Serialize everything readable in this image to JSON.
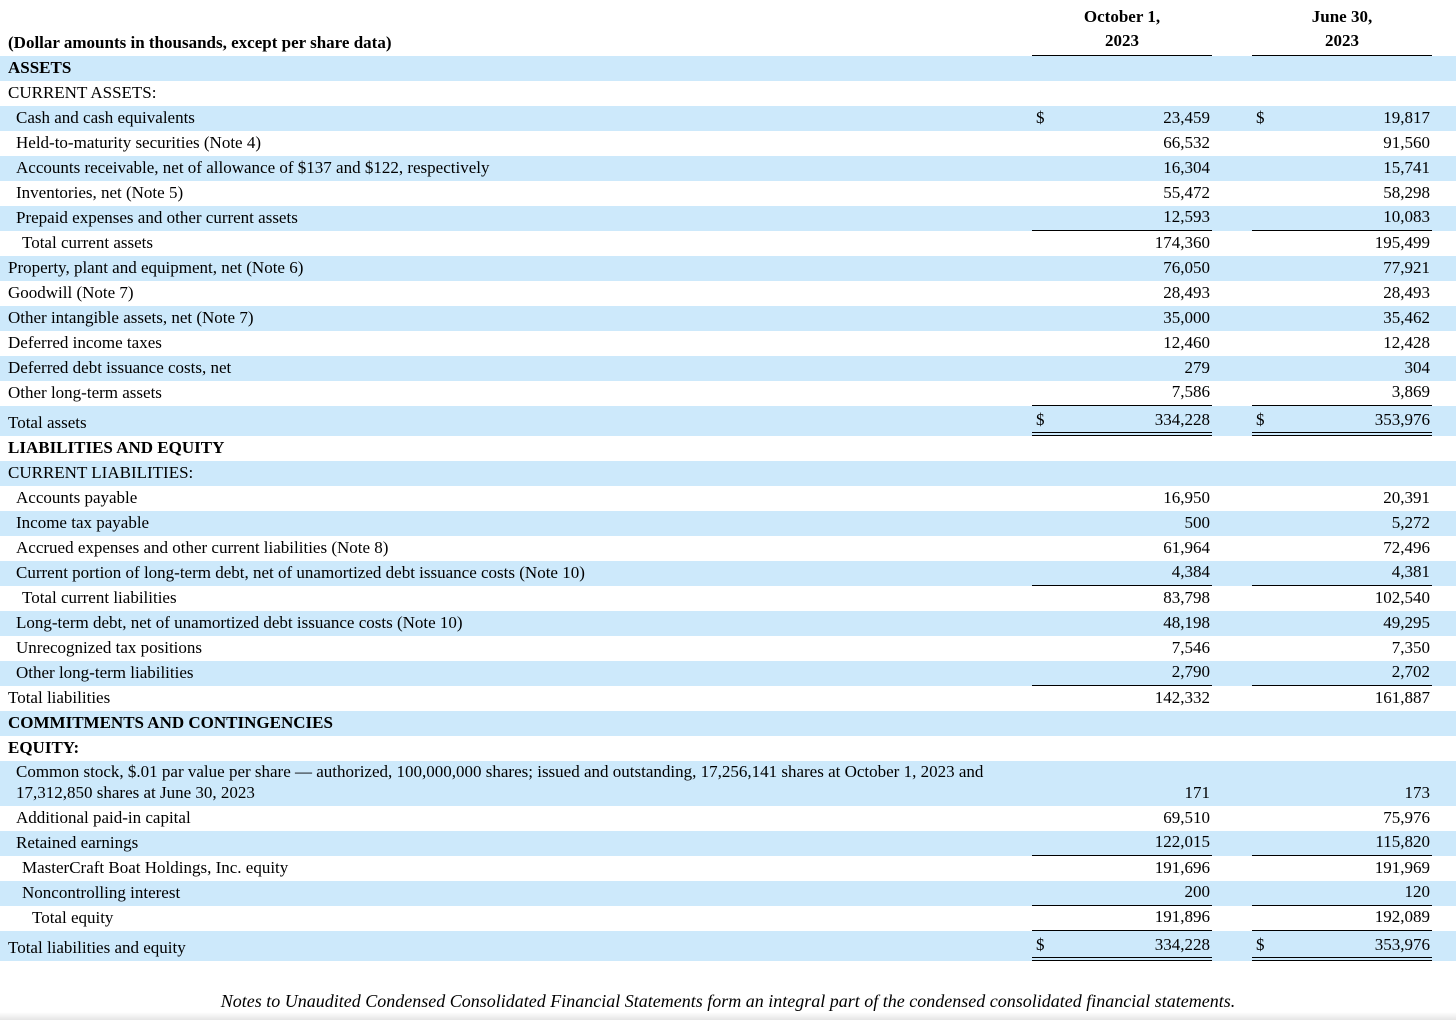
{
  "colors": {
    "stripe": "#cde9fb",
    "text": "#000000",
    "rule": "#000000"
  },
  "header": {
    "caption": "(Dollar amounts in thousands, except per share data)",
    "col1_line1": "October 1,",
    "col1_line2": "2023",
    "col2_line1": "June 30,",
    "col2_line2": "2023"
  },
  "rows": [
    {
      "label": "ASSETS",
      "indent": 0,
      "bold": true,
      "stripe": true,
      "dollar": false,
      "v1": "",
      "v2": "",
      "rule": "none"
    },
    {
      "label": "CURRENT ASSETS:",
      "indent": 0,
      "bold": false,
      "stripe": false,
      "dollar": false,
      "v1": "",
      "v2": "",
      "rule": "none"
    },
    {
      "label": "Cash and cash equivalents",
      "indent": 1,
      "bold": false,
      "stripe": true,
      "dollar": true,
      "v1": "23,459",
      "v2": "19,817",
      "rule": "none"
    },
    {
      "label": "Held-to-maturity securities (Note 4)",
      "indent": 1,
      "bold": false,
      "stripe": false,
      "dollar": false,
      "v1": "66,532",
      "v2": "91,560",
      "rule": "none"
    },
    {
      "label": "Accounts receivable, net of allowance of $137 and $122, respectively",
      "indent": 1,
      "bold": false,
      "stripe": true,
      "dollar": false,
      "v1": "16,304",
      "v2": "15,741",
      "rule": "none"
    },
    {
      "label": "Inventories, net (Note 5)",
      "indent": 1,
      "bold": false,
      "stripe": false,
      "dollar": false,
      "v1": "55,472",
      "v2": "58,298",
      "rule": "none"
    },
    {
      "label": "Prepaid expenses and other current assets",
      "indent": 1,
      "bold": false,
      "stripe": true,
      "dollar": false,
      "v1": "12,593",
      "v2": "10,083",
      "rule": "single"
    },
    {
      "label": "Total current assets",
      "indent": 2,
      "bold": false,
      "stripe": false,
      "dollar": false,
      "v1": "174,360",
      "v2": "195,499",
      "rule": "none"
    },
    {
      "label": "Property, plant and equipment, net (Note 6)",
      "indent": 0,
      "bold": false,
      "stripe": true,
      "dollar": false,
      "v1": "76,050",
      "v2": "77,921",
      "rule": "none"
    },
    {
      "label": "Goodwill (Note 7)",
      "indent": 0,
      "bold": false,
      "stripe": false,
      "dollar": false,
      "v1": "28,493",
      "v2": "28,493",
      "rule": "none"
    },
    {
      "label": "Other intangible assets, net (Note 7)",
      "indent": 0,
      "bold": false,
      "stripe": true,
      "dollar": false,
      "v1": "35,000",
      "v2": "35,462",
      "rule": "none"
    },
    {
      "label": "Deferred income taxes",
      "indent": 0,
      "bold": false,
      "stripe": false,
      "dollar": false,
      "v1": "12,460",
      "v2": "12,428",
      "rule": "none"
    },
    {
      "label": "Deferred debt issuance costs, net",
      "indent": 0,
      "bold": false,
      "stripe": true,
      "dollar": false,
      "v1": "279",
      "v2": "304",
      "rule": "none"
    },
    {
      "label": "Other long-term assets",
      "indent": 0,
      "bold": false,
      "stripe": false,
      "dollar": false,
      "v1": "7,586",
      "v2": "3,869",
      "rule": "single"
    },
    {
      "label": "Total assets",
      "indent": 0,
      "bold": false,
      "stripe": true,
      "dollar": true,
      "v1": "334,228",
      "v2": "353,976",
      "rule": "double"
    },
    {
      "label": "LIABILITIES AND EQUITY",
      "indent": 0,
      "bold": true,
      "stripe": false,
      "dollar": false,
      "v1": "",
      "v2": "",
      "rule": "none"
    },
    {
      "label": "CURRENT LIABILITIES:",
      "indent": 0,
      "bold": false,
      "stripe": true,
      "dollar": false,
      "v1": "",
      "v2": "",
      "rule": "none"
    },
    {
      "label": "Accounts payable",
      "indent": 1,
      "bold": false,
      "stripe": false,
      "dollar": false,
      "v1": "16,950",
      "v2": "20,391",
      "rule": "none"
    },
    {
      "label": "Income tax payable",
      "indent": 1,
      "bold": false,
      "stripe": true,
      "dollar": false,
      "v1": "500",
      "v2": "5,272",
      "rule": "none"
    },
    {
      "label": "Accrued expenses and other current liabilities (Note 8)",
      "indent": 1,
      "bold": false,
      "stripe": false,
      "dollar": false,
      "v1": "61,964",
      "v2": "72,496",
      "rule": "none"
    },
    {
      "label": "Current portion of long-term debt, net of unamortized debt issuance costs (Note 10)",
      "indent": 1,
      "bold": false,
      "stripe": true,
      "dollar": false,
      "v1": "4,384",
      "v2": "4,381",
      "rule": "single"
    },
    {
      "label": "Total current liabilities",
      "indent": 2,
      "bold": false,
      "stripe": false,
      "dollar": false,
      "v1": "83,798",
      "v2": "102,540",
      "rule": "none"
    },
    {
      "label": "Long-term debt, net of unamortized debt issuance costs (Note 10)",
      "indent": 1,
      "bold": false,
      "stripe": true,
      "dollar": false,
      "v1": "48,198",
      "v2": "49,295",
      "rule": "none"
    },
    {
      "label": "Unrecognized tax positions",
      "indent": 1,
      "bold": false,
      "stripe": false,
      "dollar": false,
      "v1": "7,546",
      "v2": "7,350",
      "rule": "none"
    },
    {
      "label": "Other long-term liabilities",
      "indent": 1,
      "bold": false,
      "stripe": true,
      "dollar": false,
      "v1": "2,790",
      "v2": "2,702",
      "rule": "single"
    },
    {
      "label": "Total liabilities",
      "indent": 0,
      "bold": false,
      "stripe": false,
      "dollar": false,
      "v1": "142,332",
      "v2": "161,887",
      "rule": "none"
    },
    {
      "label": "COMMITMENTS AND CONTINGENCIES",
      "indent": 0,
      "bold": true,
      "stripe": true,
      "dollar": false,
      "v1": "",
      "v2": "",
      "rule": "none"
    },
    {
      "label": "EQUITY:",
      "indent": 0,
      "bold": true,
      "stripe": false,
      "dollar": false,
      "v1": "",
      "v2": "",
      "rule": "none"
    },
    {
      "label": "Common stock, $.01 par value per share — authorized, 100,000,000 shares; issued and outstanding, 17,256,141 shares at October 1, 2023 and 17,312,850 shares at June 30, 2023",
      "indent": 1,
      "bold": false,
      "stripe": true,
      "dollar": false,
      "v1": "171",
      "v2": "173",
      "rule": "none"
    },
    {
      "label": "Additional paid-in capital",
      "indent": 1,
      "bold": false,
      "stripe": false,
      "dollar": false,
      "v1": "69,510",
      "v2": "75,976",
      "rule": "none"
    },
    {
      "label": "Retained earnings",
      "indent": 1,
      "bold": false,
      "stripe": true,
      "dollar": false,
      "v1": "122,015",
      "v2": "115,820",
      "rule": "single"
    },
    {
      "label": "MasterCraft Boat Holdings, Inc. equity",
      "indent": 2,
      "bold": false,
      "stripe": false,
      "dollar": false,
      "v1": "191,696",
      "v2": "191,969",
      "rule": "none"
    },
    {
      "label": "Noncontrolling interest",
      "indent": 2,
      "bold": false,
      "stripe": true,
      "dollar": false,
      "v1": "200",
      "v2": "120",
      "rule": "single"
    },
    {
      "label": "Total equity",
      "indent": 3,
      "bold": false,
      "stripe": false,
      "dollar": false,
      "v1": "191,896",
      "v2": "192,089",
      "rule": "single"
    },
    {
      "label": "Total liabilities and equity",
      "indent": 0,
      "bold": false,
      "stripe": true,
      "dollar": true,
      "v1": "334,228",
      "v2": "353,976",
      "rule": "double"
    }
  ],
  "footer": {
    "note": "Notes to Unaudited Condensed Consolidated Financial Statements form an integral part of the condensed consolidated financial statements."
  }
}
